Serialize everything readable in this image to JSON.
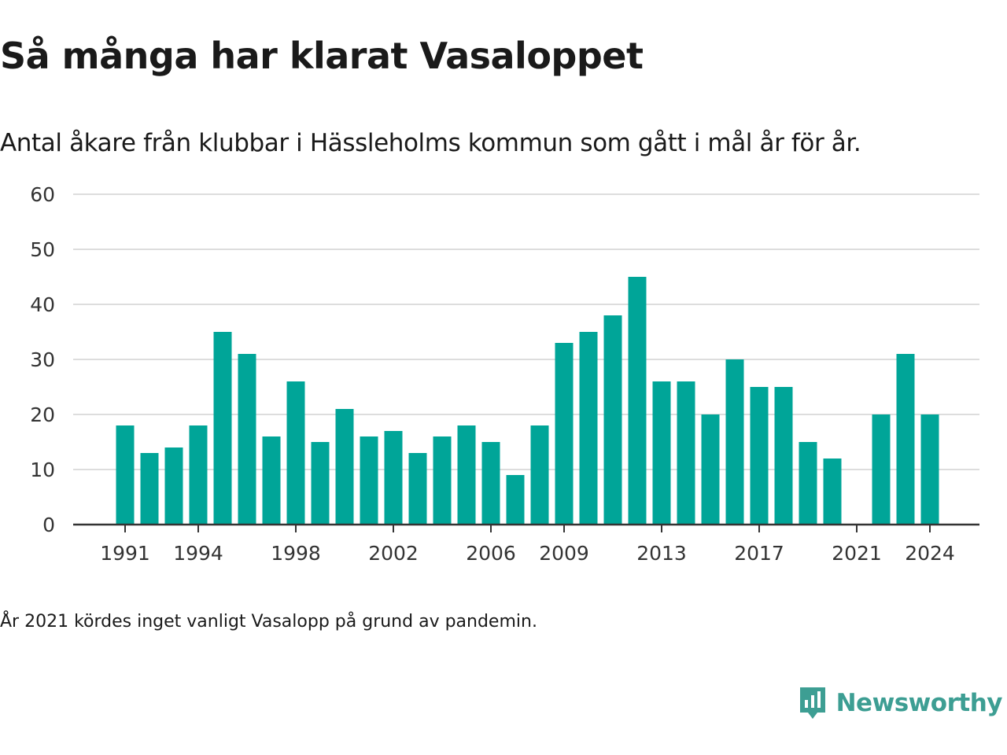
{
  "header": {
    "title": "Så många har klarat Vasaloppet",
    "subtitle": "Antal åkare från klubbar i Hässleholms kommun som gått i mål år för år."
  },
  "footer": {
    "note": "År 2021 kördes inget vanligt Vasalopp på grund av pandemin.",
    "brand": "Newsworthy"
  },
  "colors": {
    "bar": "#00a598",
    "grid": "#dddddd",
    "axis": "#333333",
    "brand": "#3d9e93"
  },
  "chart_data": {
    "type": "bar",
    "title": "Så många har klarat Vasaloppet",
    "subtitle": "Antal åkare från klubbar i Hässleholms kommun som gått i mål år för år.",
    "xlabel": "",
    "ylabel": "",
    "categories": [
      1991,
      1992,
      1993,
      1994,
      1995,
      1996,
      1997,
      1998,
      1999,
      2000,
      2001,
      2002,
      2003,
      2004,
      2005,
      2006,
      2007,
      2008,
      2009,
      2010,
      2011,
      2012,
      2013,
      2014,
      2015,
      2016,
      2017,
      2018,
      2019,
      2020,
      2021,
      2022,
      2023,
      2024
    ],
    "values": [
      18,
      13,
      14,
      18,
      35,
      31,
      16,
      26,
      15,
      21,
      16,
      17,
      13,
      16,
      18,
      15,
      9,
      18,
      33,
      35,
      38,
      45,
      26,
      26,
      20,
      30,
      25,
      25,
      15,
      12,
      null,
      20,
      31,
      20
    ],
    "ylim": [
      0,
      60
    ],
    "yticks": [
      0,
      10,
      20,
      30,
      40,
      50,
      60
    ],
    "xticks": [
      "1991",
      "1994",
      "1998",
      "2002",
      "2006",
      "2009",
      "2013",
      "2017",
      "2021",
      "2024"
    ],
    "grid": true,
    "legend": "none",
    "color": "#00a598"
  }
}
